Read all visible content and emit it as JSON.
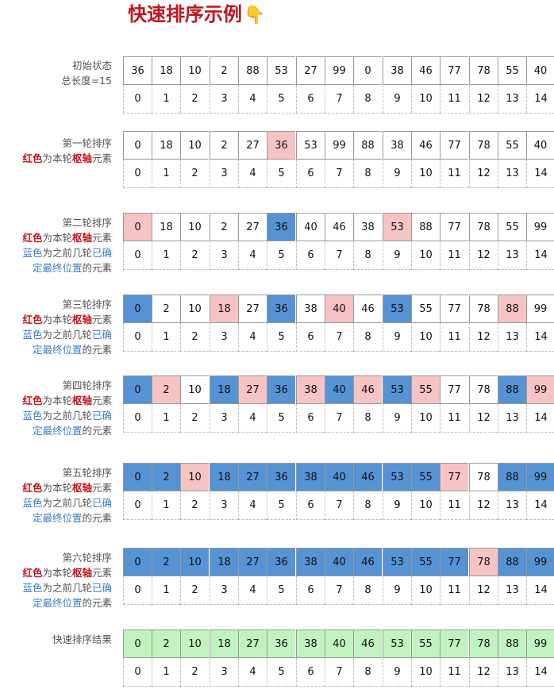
{
  "title": "快速排序示例",
  "indices": [
    "0",
    "1",
    "2",
    "3",
    "4",
    "5",
    "6",
    "7",
    "8",
    "9",
    "10",
    "11",
    "12",
    "13",
    "14"
  ],
  "legend": {
    "red_word": "红色",
    "mid1": "为本轮",
    "pivot_word": "枢轴",
    "tail1": "元素",
    "blue_word": "蓝色",
    "mid2": "为之前几轮",
    "line3_blue": "已确",
    "line4_blue": "定最终位置",
    "tail2": "的元素"
  },
  "colors": {
    "pivot": "#f8c3c3",
    "fixed": "#5593d4",
    "done": "#c0f3c0",
    "title": "#c0151f"
  },
  "rows": [
    {
      "label": "初始状态",
      "sub": "总长度=15",
      "values": [
        "36",
        "18",
        "10",
        "2",
        "88",
        "53",
        "27",
        "99",
        "0",
        "38",
        "46",
        "77",
        "78",
        "55",
        "40"
      ],
      "states": [
        "",
        "",
        "",
        "",
        "",
        "",
        "",
        "",
        "",
        "",
        "",
        "",
        "",
        "",
        ""
      ]
    },
    {
      "label": "第一轮排序",
      "values": [
        "0",
        "18",
        "10",
        "2",
        "27",
        "36",
        "53",
        "99",
        "88",
        "38",
        "46",
        "77",
        "78",
        "55",
        "40"
      ],
      "states": [
        "",
        "",
        "",
        "",
        "",
        "p",
        "",
        "",
        "",
        "",
        "",
        "",
        "",
        "",
        ""
      ]
    },
    {
      "label": "第二轮排序",
      "values": [
        "0",
        "18",
        "10",
        "2",
        "27",
        "36",
        "40",
        "46",
        "38",
        "53",
        "88",
        "77",
        "78",
        "55",
        "99"
      ],
      "states": [
        "p",
        "",
        "",
        "",
        "",
        "f",
        "",
        "",
        "",
        "p",
        "",
        "",
        "",
        "",
        ""
      ]
    },
    {
      "label": "第三轮排序",
      "values": [
        "0",
        "2",
        "10",
        "18",
        "27",
        "36",
        "38",
        "40",
        "46",
        "53",
        "55",
        "77",
        "78",
        "88",
        "99"
      ],
      "states": [
        "f",
        "",
        "",
        "p",
        "",
        "f",
        "",
        "p",
        "",
        "f",
        "",
        "",
        "",
        "p",
        ""
      ]
    },
    {
      "label": "第四轮排序",
      "values": [
        "0",
        "2",
        "10",
        "18",
        "27",
        "36",
        "38",
        "40",
        "46",
        "53",
        "55",
        "77",
        "78",
        "88",
        "99"
      ],
      "states": [
        "f",
        "p",
        "",
        "f",
        "p",
        "f",
        "p",
        "f",
        "p",
        "f",
        "p",
        "",
        "",
        "f",
        "p"
      ]
    },
    {
      "label": "第五轮排序",
      "values": [
        "0",
        "2",
        "10",
        "18",
        "27",
        "36",
        "38",
        "40",
        "46",
        "53",
        "55",
        "77",
        "78",
        "88",
        "99"
      ],
      "states": [
        "f",
        "f",
        "p",
        "f",
        "f",
        "f",
        "f",
        "f",
        "f",
        "f",
        "f",
        "p",
        "",
        "f",
        "f"
      ]
    },
    {
      "label": "第六轮排序",
      "values": [
        "0",
        "2",
        "10",
        "18",
        "27",
        "36",
        "38",
        "40",
        "46",
        "53",
        "55",
        "77",
        "78",
        "88",
        "99"
      ],
      "states": [
        "f",
        "f",
        "f",
        "f",
        "f",
        "f",
        "f",
        "f",
        "f",
        "f",
        "f",
        "f",
        "p",
        "f",
        "f"
      ]
    },
    {
      "label": "快速排序结果",
      "values": [
        "0",
        "2",
        "10",
        "18",
        "27",
        "36",
        "38",
        "40",
        "46",
        "53",
        "55",
        "77",
        "78",
        "88",
        "99"
      ],
      "states": [
        "d",
        "d",
        "d",
        "d",
        "d",
        "d",
        "d",
        "d",
        "d",
        "d",
        "d",
        "d",
        "d",
        "d",
        "d"
      ]
    }
  ]
}
